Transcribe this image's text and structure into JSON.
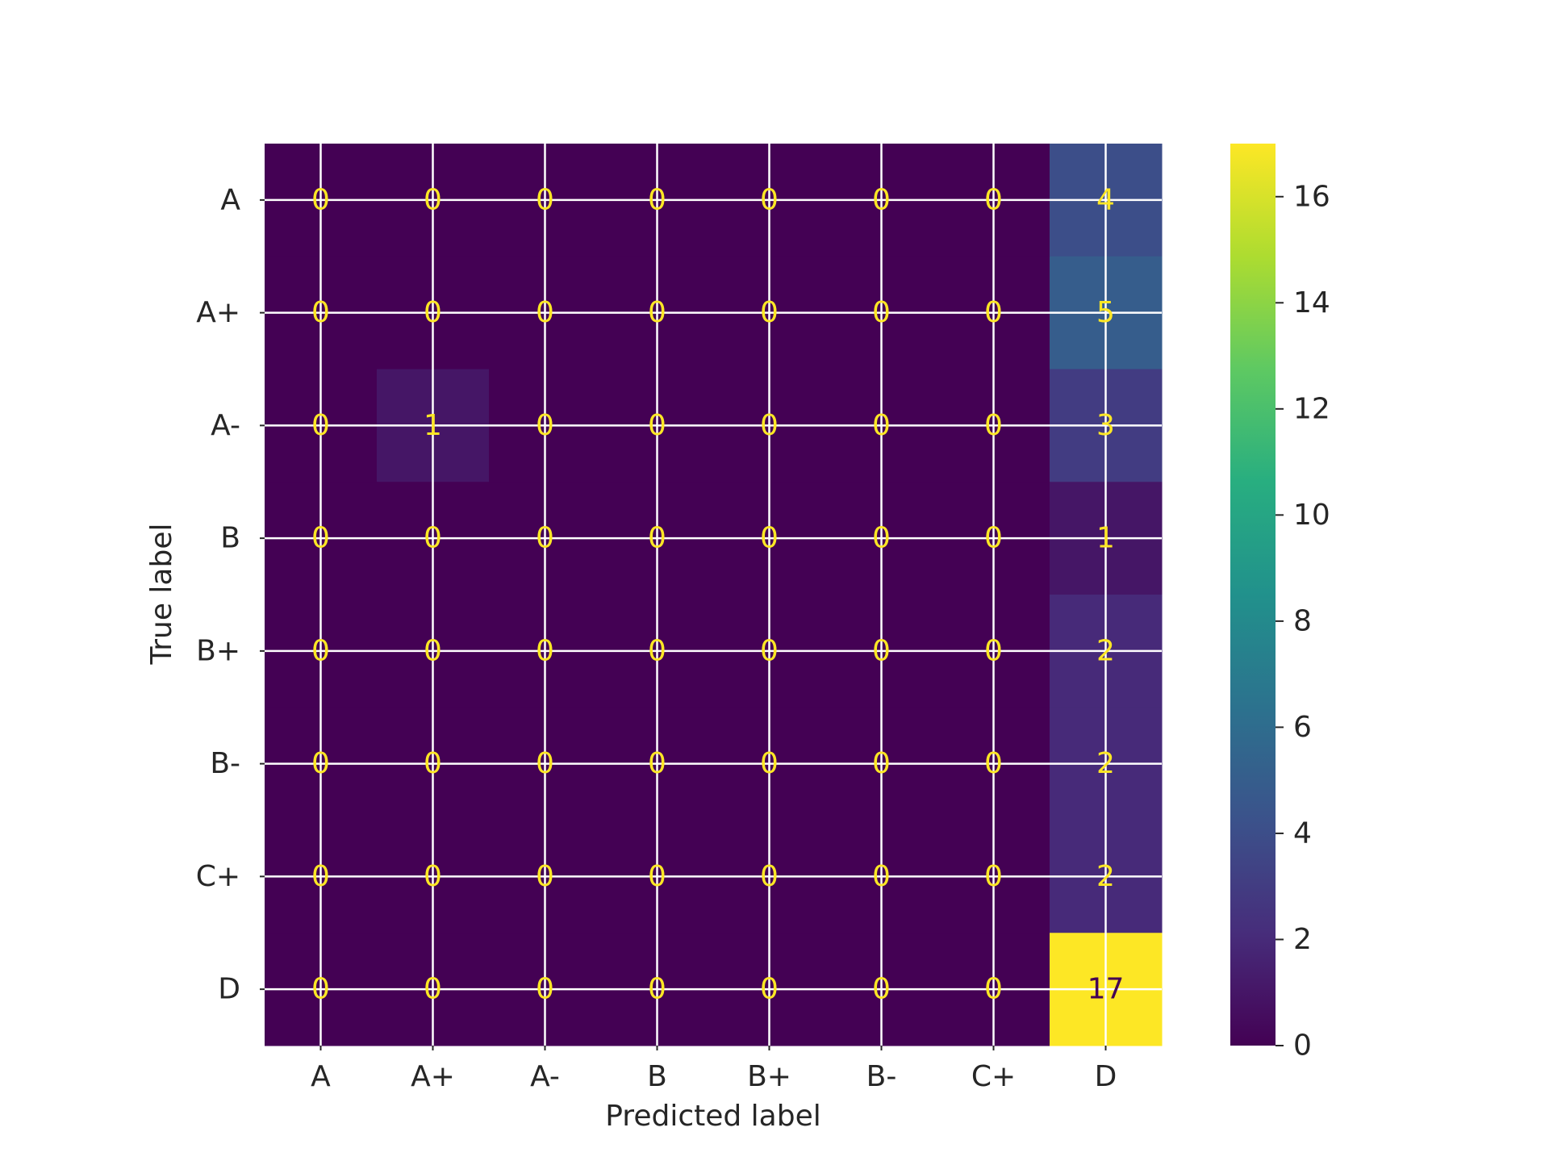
{
  "chart_data": {
    "type": "heatmap",
    "title": "",
    "xlabel": "Predicted label",
    "ylabel": "True label",
    "x_categories": [
      "A",
      "A+",
      "A-",
      "B",
      "B+",
      "B-",
      "C+",
      "D"
    ],
    "y_categories": [
      "A",
      "A+",
      "A-",
      "B",
      "B+",
      "B-",
      "C+",
      "D"
    ],
    "values": [
      [
        0,
        0,
        0,
        0,
        0,
        0,
        0,
        4
      ],
      [
        0,
        0,
        0,
        0,
        0,
        0,
        0,
        5
      ],
      [
        0,
        1,
        0,
        0,
        0,
        0,
        0,
        3
      ],
      [
        0,
        0,
        0,
        0,
        0,
        0,
        0,
        1
      ],
      [
        0,
        0,
        0,
        0,
        0,
        0,
        0,
        2
      ],
      [
        0,
        0,
        0,
        0,
        0,
        0,
        0,
        2
      ],
      [
        0,
        0,
        0,
        0,
        0,
        0,
        0,
        2
      ],
      [
        0,
        0,
        0,
        0,
        0,
        0,
        0,
        17
      ]
    ],
    "vmin": 0,
    "vmax": 17,
    "colormap": "viridis",
    "colorbar_ticks": [
      0,
      2,
      4,
      6,
      8,
      10,
      12,
      14,
      16
    ],
    "grid": true,
    "grid_color": "#ffffff",
    "annotation_colors": {
      "light": "#fde725",
      "dark": "#440154"
    },
    "text_color": "#262626"
  }
}
